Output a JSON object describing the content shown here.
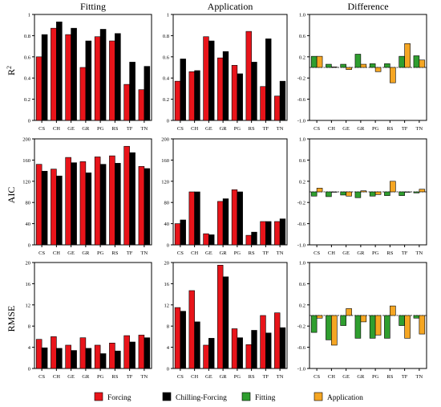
{
  "categories": [
    "CS",
    "CH",
    "GE",
    "GR",
    "PG",
    "RS",
    "TF",
    "TN"
  ],
  "columns": [
    "Fitting",
    "Application",
    "Difference"
  ],
  "rows": [
    "R2",
    "AIC",
    "RMSE"
  ],
  "legend": [
    {
      "label": "Forcing",
      "color": "#e8141a"
    },
    {
      "label": "Chilling-Forcing",
      "color": "#000000"
    },
    {
      "label": "Fitting",
      "color": "#2f9e2f"
    },
    {
      "label": "Application",
      "color": "#f5a623"
    }
  ],
  "chart_data": [
    {
      "type": "bar",
      "title": "Fitting",
      "ylabel": "R2",
      "ylim": [
        0,
        1
      ],
      "yticks": [
        "0",
        "0.2",
        "0.4",
        "0.6",
        "0.8",
        "1"
      ],
      "categories": [
        "CS",
        "CH",
        "GE",
        "GR",
        "PG",
        "RS",
        "TF",
        "TN"
      ],
      "series": [
        {
          "name": "Forcing",
          "values": [
            0.6,
            0.87,
            0.81,
            0.5,
            0.79,
            0.75,
            0.34,
            0.29
          ]
        },
        {
          "name": "Chilling-Forcing",
          "values": [
            0.81,
            0.93,
            0.87,
            0.75,
            0.86,
            0.82,
            0.55,
            0.51
          ]
        }
      ]
    },
    {
      "type": "bar",
      "title": "Application",
      "ylim": [
        0,
        1
      ],
      "yticks": [
        "0",
        "0.2",
        "0.4",
        "0.6",
        "0.8",
        "1"
      ],
      "categories": [
        "CS",
        "CH",
        "GE",
        "GR",
        "PG",
        "RS",
        "TF",
        "TN"
      ],
      "series": [
        {
          "name": "Forcing",
          "values": [
            0.37,
            0.46,
            0.79,
            0.59,
            0.52,
            0.84,
            0.32,
            0.23
          ]
        },
        {
          "name": "Chilling-Forcing",
          "values": [
            0.58,
            0.47,
            0.75,
            0.65,
            0.44,
            0.55,
            0.77,
            0.37
          ]
        }
      ]
    },
    {
      "type": "bar",
      "title": "Difference",
      "ylim": [
        -1,
        1
      ],
      "yticks": [
        "-1.0",
        "-0.6",
        "-0.2",
        "0.2",
        "0.6",
        "1.0"
      ],
      "categories": [
        "CS",
        "CH",
        "GE",
        "GR",
        "PG",
        "RS",
        "TF",
        "TN"
      ],
      "series": [
        {
          "name": "Fitting",
          "values": [
            0.21,
            0.06,
            0.06,
            0.25,
            0.07,
            0.07,
            0.21,
            0.22
          ]
        },
        {
          "name": "Application",
          "values": [
            0.21,
            0.01,
            -0.04,
            0.06,
            -0.08,
            -0.29,
            0.45,
            0.14
          ]
        }
      ]
    },
    {
      "type": "bar",
      "ylabel": "AIC",
      "ylim": [
        0,
        200
      ],
      "yticks": [
        "0",
        "40",
        "80",
        "120",
        "160",
        "200"
      ],
      "categories": [
        "CS",
        "CH",
        "GE",
        "GR",
        "PG",
        "RS",
        "TF",
        "TN"
      ],
      "series": [
        {
          "name": "Forcing",
          "values": [
            152,
            143,
            165,
            157,
            166,
            168,
            186,
            148
          ]
        },
        {
          "name": "Chilling-Forcing",
          "values": [
            139,
            130,
            155,
            136,
            152,
            154,
            174,
            144
          ]
        }
      ]
    },
    {
      "type": "bar",
      "ylim": [
        0,
        200
      ],
      "yticks": [
        "0",
        "40",
        "80",
        "120",
        "160",
        "200"
      ],
      "categories": [
        "CS",
        "CH",
        "GE",
        "GR",
        "PG",
        "RS",
        "TF",
        "TN"
      ],
      "series": [
        {
          "name": "Forcing",
          "values": [
            40,
            100,
            21,
            82,
            104,
            18,
            44,
            44
          ]
        },
        {
          "name": "Chilling-Forcing",
          "values": [
            47,
            100,
            19,
            87,
            100,
            24,
            44,
            49
          ]
        }
      ]
    },
    {
      "type": "bar",
      "ylim": [
        -1,
        1
      ],
      "yticks": [
        "-1.0",
        "-0.6",
        "-0.2",
        "0.2",
        "0.6",
        "1.0"
      ],
      "categories": [
        "CS",
        "CH",
        "GE",
        "GR",
        "PG",
        "RS",
        "TF",
        "TN"
      ],
      "series": [
        {
          "name": "Fitting",
          "values": [
            -0.08,
            -0.09,
            -0.06,
            -0.11,
            -0.08,
            -0.07,
            -0.07,
            -0.02
          ]
        },
        {
          "name": "Application",
          "values": [
            0.07,
            0.0,
            -0.08,
            0.02,
            -0.05,
            0.2,
            0.0,
            0.05
          ]
        }
      ]
    },
    {
      "type": "bar",
      "ylabel": "RMSE",
      "ylim": [
        0,
        20
      ],
      "yticks": [
        "0",
        "4",
        "8",
        "12",
        "16",
        "20"
      ],
      "categories": [
        "CS",
        "CH",
        "GE",
        "GR",
        "PG",
        "RS",
        "TF",
        "TN"
      ],
      "series": [
        {
          "name": "Forcing",
          "values": [
            5.5,
            6.0,
            4.4,
            5.8,
            4.4,
            4.8,
            6.2,
            6.3
          ]
        },
        {
          "name": "Chilling-Forcing",
          "values": [
            3.9,
            3.8,
            3.4,
            3.8,
            2.8,
            3.3,
            5.0,
            5.8
          ]
        }
      ]
    },
    {
      "type": "bar",
      "ylim": [
        0,
        20
      ],
      "yticks": [
        "0",
        "4",
        "8",
        "12",
        "16",
        "20"
      ],
      "categories": [
        "CS",
        "CH",
        "GE",
        "GR",
        "PG",
        "RS",
        "TF",
        "TN"
      ],
      "series": [
        {
          "name": "Forcing",
          "values": [
            11.5,
            14.7,
            4.4,
            19.5,
            7.5,
            4.5,
            10.0,
            10.5
          ]
        },
        {
          "name": "Chilling-Forcing",
          "values": [
            10.8,
            8.8,
            5.7,
            17.3,
            5.8,
            7.2,
            6.7,
            7.7
          ]
        }
      ]
    },
    {
      "type": "bar",
      "ylim": [
        -1,
        1
      ],
      "yticks": [
        "-1.0",
        "-0.6",
        "-0.2",
        "0.2",
        "0.6",
        "1.0"
      ],
      "categories": [
        "CS",
        "CH",
        "GE",
        "GR",
        "PG",
        "RS",
        "TF",
        "TN"
      ],
      "series": [
        {
          "name": "Fitting",
          "values": [
            -0.32,
            -0.46,
            -0.19,
            -0.43,
            -0.43,
            -0.43,
            -0.19,
            -0.05
          ]
        },
        {
          "name": "Application",
          "values": [
            -0.05,
            -0.56,
            0.13,
            -0.12,
            -0.37,
            0.18,
            -0.43,
            -0.35
          ]
        }
      ]
    }
  ]
}
